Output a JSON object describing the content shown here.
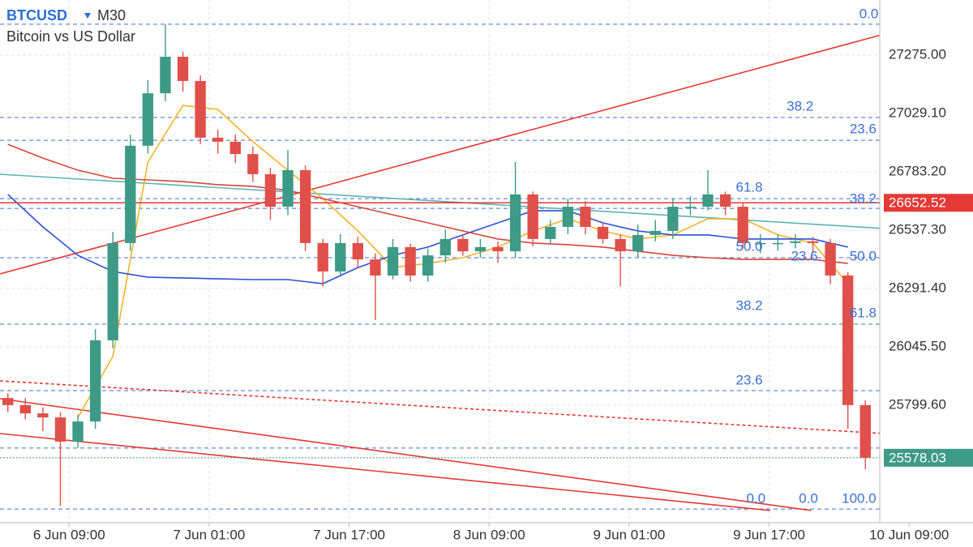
{
  "chart_data": {
    "type": "candlestick",
    "symbol": "BTCUSD",
    "timeframe": "M30",
    "subtitle": "Bitcoin vs US Dollar",
    "xlim": [
      1.1,
      112.3
    ],
    "ylim": [
      25304.4,
      27507.2
    ],
    "xticks": [
      {
        "value": 9,
        "label": "6 Jun 09:00"
      },
      {
        "value": 25,
        "label": "7 Jun 01:00"
      },
      {
        "value": 41,
        "label": "7 Jun 17:00"
      },
      {
        "value": 57,
        "label": "8 Jun 09:00"
      },
      {
        "value": 73,
        "label": "9 Jun 01:00"
      },
      {
        "value": 89,
        "label": "9 Jun 17:00"
      },
      {
        "value": 105,
        "label": "10 Jun 09:00"
      }
    ],
    "yticks": [
      {
        "value": 27275,
        "label": "27275.00"
      },
      {
        "value": 27029.1,
        "label": "27029.10"
      },
      {
        "value": 26783.2,
        "label": "26783.20"
      },
      {
        "value": 26537.3,
        "label": "26537.30"
      },
      {
        "value": 26291.4,
        "label": "26291.40"
      },
      {
        "value": 26045.5,
        "label": "26045.50"
      },
      {
        "value": 25799.6,
        "label": "25799.60"
      }
    ],
    "grid": true,
    "up_color": "#3d9a87",
    "down_color": "#e0504a",
    "x": [
      2,
      4,
      6,
      8,
      10,
      12,
      14,
      16,
      18,
      20,
      22,
      24,
      26,
      28,
      30,
      32,
      34,
      36,
      38,
      40,
      42,
      44,
      46,
      48,
      50,
      52,
      54,
      56,
      58,
      60,
      62,
      64,
      66,
      68,
      70,
      72,
      74,
      76,
      78,
      80,
      82,
      84,
      86,
      88,
      90,
      92,
      94,
      96,
      98,
      100
    ],
    "open": [
      25830,
      25800,
      25765,
      25748,
      25646,
      25731,
      26073,
      26483,
      26893,
      27114,
      27268,
      27166,
      26927,
      26910,
      26858,
      26773,
      26636,
      26790,
      26483,
      26363,
      26483,
      26414,
      26346,
      26466,
      26346,
      26431,
      26500,
      26448,
      26466,
      26448,
      26688,
      26500,
      26551,
      26636,
      26551,
      26500,
      26448,
      26517,
      26534,
      26636,
      26636,
      26688,
      26636,
      26483,
      26483,
      26483,
      26490,
      26483,
      26346,
      25800
    ],
    "high": [
      25850,
      25830,
      25790,
      25770,
      25760,
      26120,
      26530,
      26940,
      27170,
      27405,
      27290,
      27190,
      26960,
      26940,
      26890,
      26800,
      26875,
      26810,
      26500,
      26520,
      26510,
      26440,
      26500,
      26480,
      26460,
      26540,
      26520,
      26500,
      26490,
      26824,
      26700,
      26580,
      26670,
      26660,
      26570,
      26520,
      26560,
      26580,
      26670,
      26680,
      26790,
      26700,
      26650,
      26520,
      26520,
      26520,
      26510,
      26500,
      26360,
      25820
    ],
    "low": [
      25770,
      25740,
      25690,
      25375,
      25620,
      25700,
      26040,
      26450,
      26860,
      27080,
      27120,
      26900,
      26860,
      26820,
      26740,
      26580,
      26600,
      26450,
      26300,
      26340,
      26380,
      26158,
      26330,
      26320,
      26320,
      26400,
      26430,
      26420,
      26400,
      26420,
      26470,
      26480,
      26520,
      26520,
      26480,
      26300,
      26420,
      26490,
      26500,
      26600,
      26620,
      26600,
      26460,
      26440,
      26450,
      26460,
      26440,
      26310,
      25700,
      25530
    ],
    "close": [
      25800,
      25765,
      25748,
      25646,
      25731,
      26073,
      26483,
      26893,
      27114,
      27268,
      27166,
      26927,
      26910,
      26858,
      26773,
      26636,
      26790,
      26483,
      26363,
      26483,
      26414,
      26346,
      26466,
      26346,
      26431,
      26500,
      26448,
      26466,
      26448,
      26688,
      26500,
      26551,
      26636,
      26551,
      26500,
      26448,
      26517,
      26534,
      26636,
      26636,
      26688,
      26636,
      26483,
      26483,
      26483,
      26490,
      26483,
      26346,
      25800,
      25578.03
    ],
    "series": [
      {
        "color": "#f0b429",
        "x": [
          2,
          6,
          10,
          14,
          18,
          22,
          26,
          30,
          34,
          38,
          42,
          46,
          50,
          54,
          58,
          62,
          66,
          70,
          74,
          78,
          82,
          86,
          90,
          94,
          98
        ],
        "values": [
          null,
          null,
          25748,
          26005,
          26824,
          27063,
          27046,
          26910,
          26790,
          26670,
          26534,
          26380,
          26397,
          26421,
          26466,
          26534,
          26585,
          26534,
          26500,
          26517,
          26585,
          26585,
          26517,
          26483,
          26312
        ]
      },
      {
        "color": "#2c4fd6",
        "x": [
          2,
          6,
          10,
          14,
          18,
          22,
          26,
          30,
          34,
          38,
          42,
          46,
          50,
          54,
          58,
          62,
          66,
          70,
          74,
          78,
          82,
          86,
          90,
          94,
          98
        ],
        "values": [
          26688,
          26551,
          26431,
          26363,
          26339,
          26336,
          26332,
          26329,
          26329,
          26312,
          26380,
          26431,
          26466,
          26517,
          26568,
          26619,
          26619,
          26568,
          26534,
          26517,
          26517,
          26500,
          26500,
          26500,
          26466
        ]
      },
      {
        "color": "#d8453a",
        "x": [
          2,
          6,
          10,
          14,
          18,
          22,
          26,
          30,
          34,
          38,
          42,
          46,
          50,
          54,
          58,
          62,
          66,
          70,
          74,
          78,
          82,
          86,
          90,
          94,
          98
        ],
        "values": [
          26899,
          26841,
          26790,
          26756,
          26749,
          26742,
          26729,
          26722,
          26705,
          26670,
          26636,
          26602,
          26568,
          26534,
          26500,
          26483,
          26476,
          26466,
          26449,
          26431,
          26421,
          26414,
          26414,
          26414,
          26397
        ]
      }
    ],
    "trendlines": [
      {
        "color": "#e53935",
        "dashed": false,
        "x": [
          1.1,
          102.1
        ],
        "values": [
          26353,
          27363
        ]
      },
      {
        "color": "#e53935",
        "dashed": false,
        "x": [
          1.1,
          93.8
        ],
        "values": [
          25827,
          25356
        ]
      },
      {
        "color": "#e53935",
        "dashed": false,
        "x": [
          1.1,
          89.1
        ],
        "values": [
          25680,
          25356
        ]
      },
      {
        "color": "#e53935",
        "dashed": true,
        "x": [
          1.1,
          102.1
        ],
        "values": [
          25902,
          25680
        ]
      },
      {
        "color": "#5fb3b3",
        "dashed": false,
        "x": [
          1.1,
          102.1
        ],
        "values": [
          26773,
          26544
        ]
      }
    ],
    "fib_color": "#3b6fd6",
    "fib_levels": [
      27405,
      27012,
      26916,
      26670,
      26629,
      26421,
      26141,
      25861,
      25619,
      25362
    ],
    "fib_labels": [
      {
        "label": "0.0",
        "x": 99.3,
        "y": 27446
      },
      {
        "label": "38.2",
        "x": 91.0,
        "y": 27056
      },
      {
        "label": "23.6",
        "x": 98.2,
        "y": 26961
      },
      {
        "label": "61.8",
        "x": 85.2,
        "y": 26715
      },
      {
        "label": "38.2",
        "x": 98.2,
        "y": 26667
      },
      {
        "label": "50.0",
        "x": 85.2,
        "y": 26466
      },
      {
        "label": "23.6",
        "x": 91.5,
        "y": 26425
      },
      {
        "label": "50.0",
        "x": 98.2,
        "y": 26425
      },
      {
        "label": "38.2",
        "x": 85.2,
        "y": 26216
      },
      {
        "label": "61.8",
        "x": 98.2,
        "y": 26185
      },
      {
        "label": "23.6",
        "x": 85.2,
        "y": 25902
      },
      {
        "label": "0.0",
        "x": 86.4,
        "y": 25403
      },
      {
        "label": "0.0",
        "x": 92.4,
        "y": 25403
      },
      {
        "label": "100.0",
        "x": 97.3,
        "y": 25403
      }
    ],
    "price_lines": [
      {
        "value": 26652.52,
        "color": "#e53935",
        "dashed": false
      },
      {
        "value": 25578.03,
        "color": "#3d9a87",
        "dashed": true
      }
    ]
  }
}
